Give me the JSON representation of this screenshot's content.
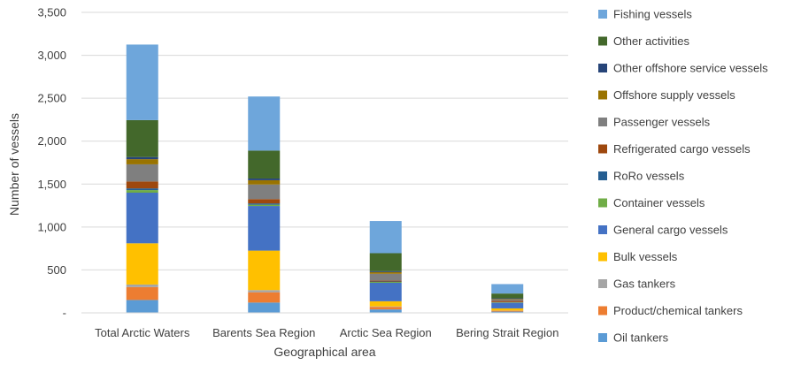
{
  "chart_data": {
    "type": "bar",
    "stacked": true,
    "title": "",
    "xlabel": "Geographical area",
    "ylabel": "Number of vessels",
    "ylim": [
      0,
      3500
    ],
    "yticks": [
      0,
      500,
      1000,
      1500,
      2000,
      2500,
      3000,
      3500
    ],
    "ytick_labels": [
      "-",
      "500",
      "1,000",
      "1,500",
      "2,000",
      "2,500",
      "3,000",
      "3,500"
    ],
    "grid": true,
    "legend_position": "right",
    "categories": [
      "Total Arctic Waters",
      "Barents Sea Region",
      "Arctic Sea Region",
      "Bering Strait Region"
    ],
    "series": [
      {
        "name": "Oil tankers",
        "color": "#5b9bd5",
        "values": [
          150,
          120,
          40,
          15
        ]
      },
      {
        "name": "Product/chemical tankers",
        "color": "#ed7d31",
        "values": [
          150,
          120,
          30,
          10
        ]
      },
      {
        "name": "Gas tankers",
        "color": "#a5a5a5",
        "values": [
          30,
          25,
          5,
          2
        ]
      },
      {
        "name": "Bulk vessels",
        "color": "#ffc000",
        "values": [
          480,
          460,
          60,
          25
        ]
      },
      {
        "name": "General cargo vessels",
        "color": "#4472c4",
        "values": [
          590,
          520,
          215,
          65
        ]
      },
      {
        "name": "Container vessels",
        "color": "#70ad47",
        "values": [
          30,
          15,
          10,
          5
        ]
      },
      {
        "name": "RoRo vessels",
        "color": "#255e91",
        "values": [
          20,
          15,
          5,
          3
        ]
      },
      {
        "name": "Refrigerated cargo vessels",
        "color": "#9e480e",
        "values": [
          80,
          50,
          10,
          15
        ]
      },
      {
        "name": "Passenger vessels",
        "color": "#7f7f7f",
        "values": [
          200,
          170,
          80,
          20
        ]
      },
      {
        "name": "Offshore supply vessels",
        "color": "#997300",
        "values": [
          60,
          50,
          20,
          5
        ]
      },
      {
        "name": "Other offshore service vessels",
        "color": "#264478",
        "values": [
          25,
          20,
          10,
          5
        ]
      },
      {
        "name": "Other activities",
        "color": "#43682b",
        "values": [
          430,
          325,
          210,
          55
        ]
      },
      {
        "name": "Fishing vessels",
        "color": "#6ea6db",
        "values": [
          880,
          630,
          375,
          110
        ]
      }
    ]
  }
}
